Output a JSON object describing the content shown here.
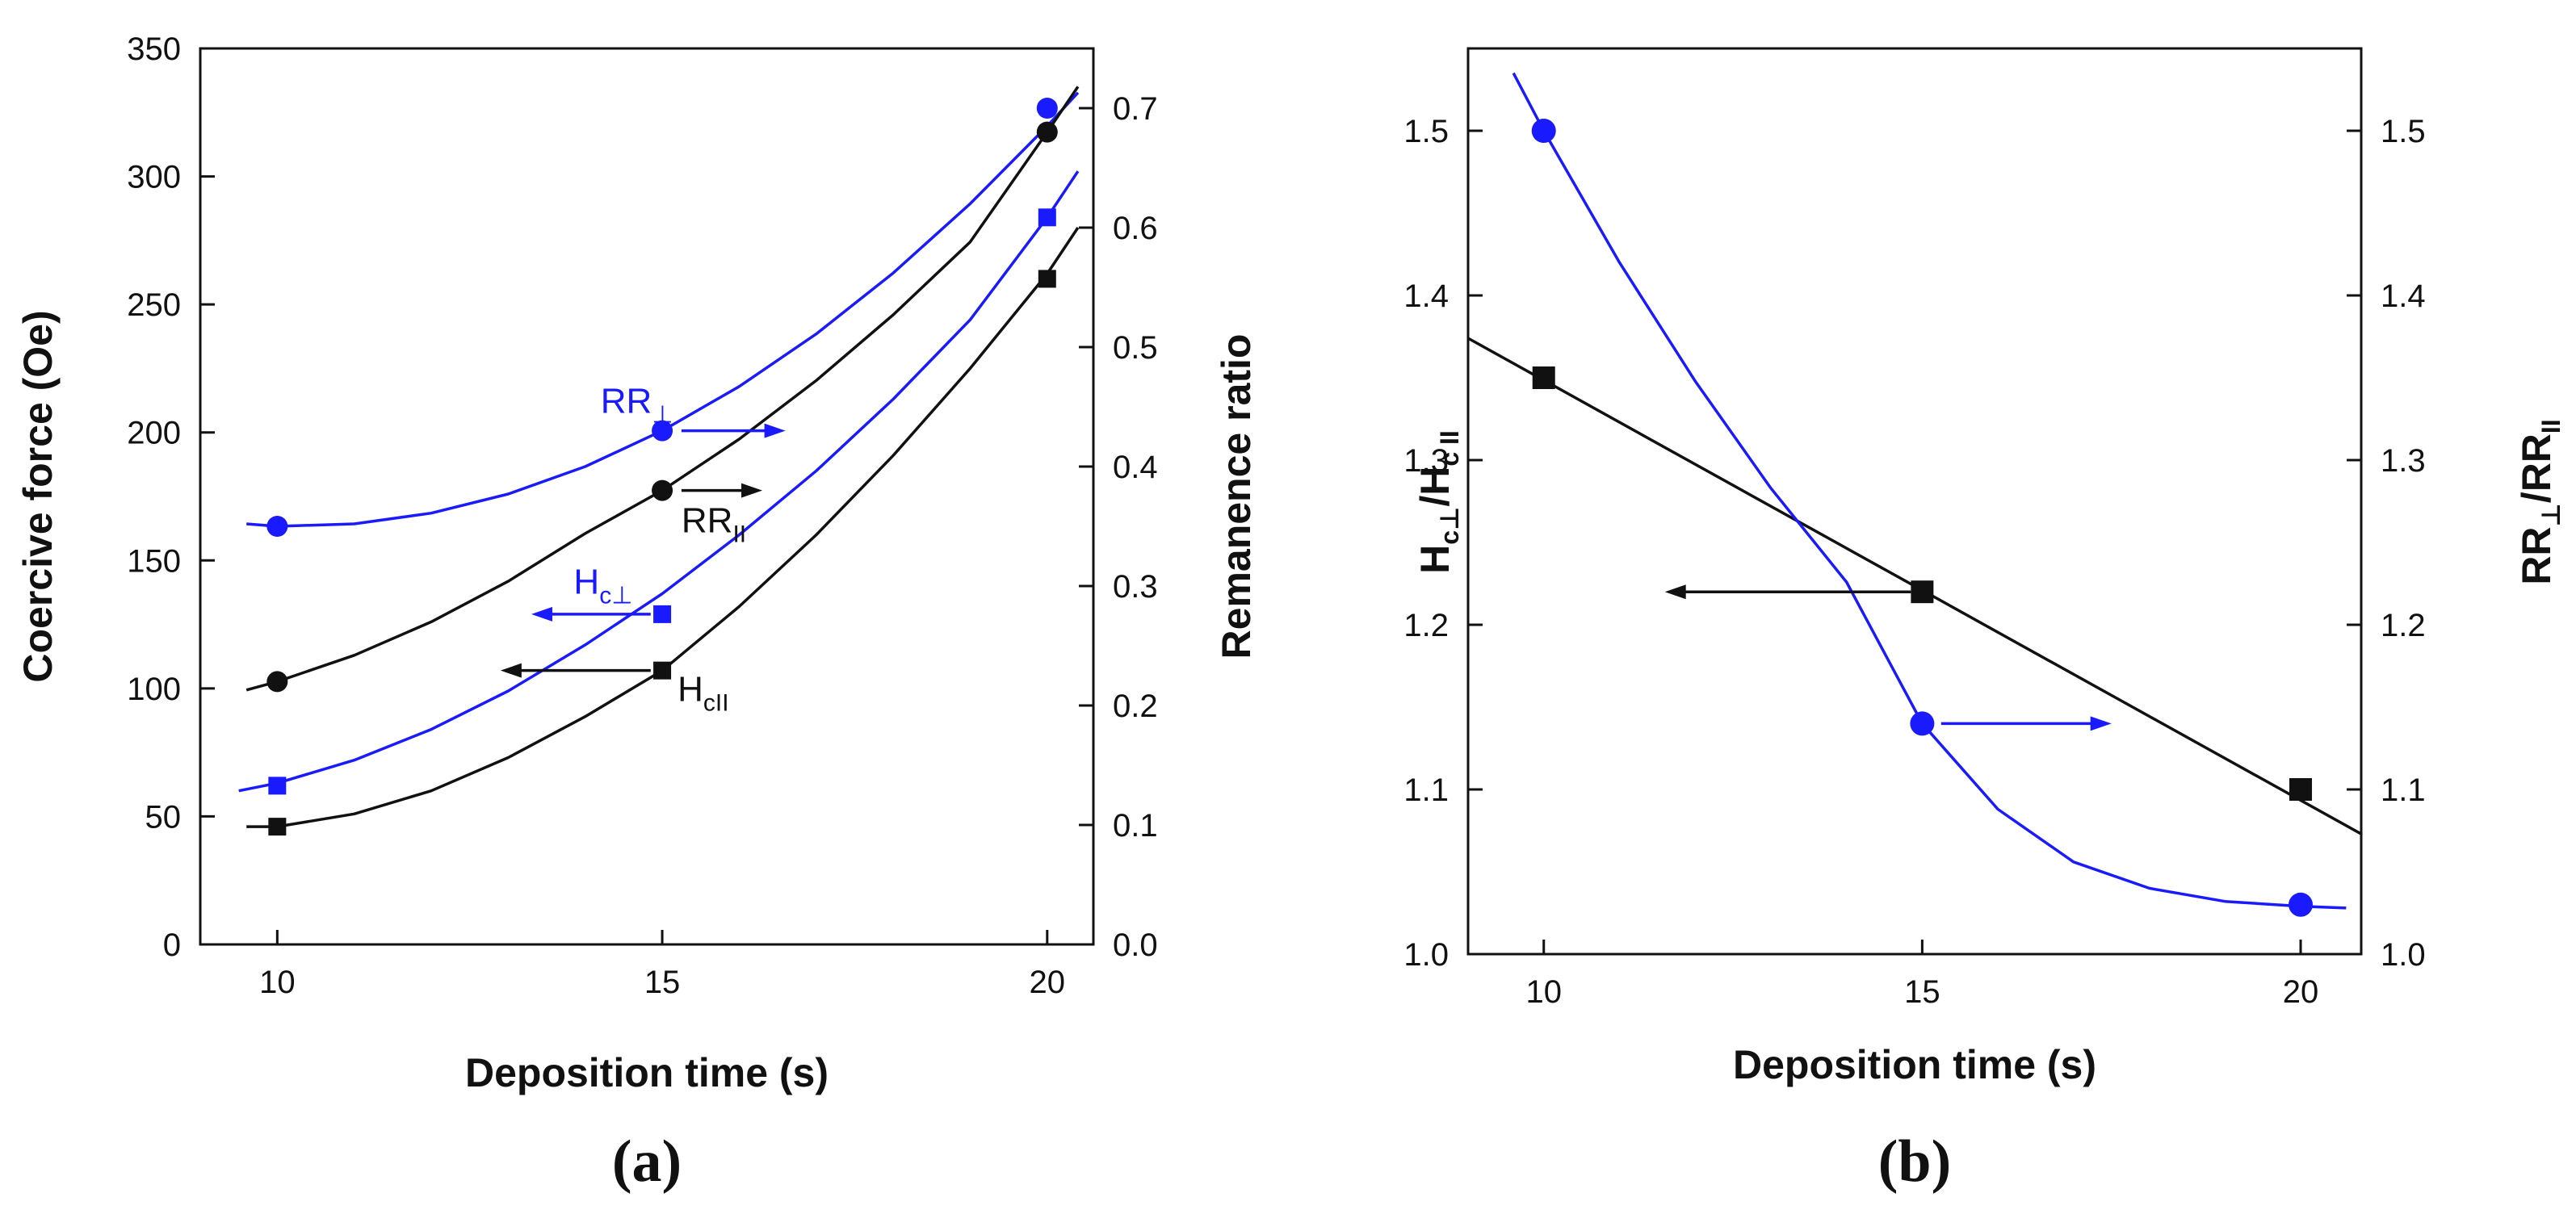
{
  "chart_data": [
    {
      "type": "line",
      "panel_label": "(a)",
      "xlabel": "Deposition time (s)",
      "ylabel": "Coercive force (Oe)",
      "y2label": "Remanence ratio",
      "xlim": [
        9,
        20.6
      ],
      "ylim": [
        0,
        350
      ],
      "y2lim": [
        0,
        0.75
      ],
      "x_ticks": [
        10,
        15,
        20
      ],
      "y_ticks": [
        0,
        50,
        100,
        150,
        200,
        250,
        300,
        350
      ],
      "y2_ticks": [
        0.0,
        0.1,
        0.2,
        0.3,
        0.4,
        0.5,
        0.6,
        0.7
      ],
      "x_tick_labels": [
        "10",
        "15",
        "20"
      ],
      "y_tick_labels": [
        "0",
        "50",
        "100",
        "150",
        "200",
        "250",
        "300",
        "350"
      ],
      "y2_tick_labels": [
        "0.0",
        "0.1",
        "0.2",
        "0.3",
        "0.4",
        "0.5",
        "0.6",
        "0.7"
      ],
      "series": [
        {
          "name": "RR⊥",
          "axis": "right",
          "color": "#1a1aff",
          "marker": "circle",
          "x": [
            10,
            15,
            20
          ],
          "values": [
            0.35,
            0.43,
            0.7
          ],
          "fit_x": [
            9.6,
            10,
            11,
            12,
            13,
            14,
            15,
            16,
            17,
            18,
            19,
            20,
            20.4
          ],
          "fit_y": [
            0.352,
            0.35,
            0.352,
            0.361,
            0.377,
            0.4,
            0.43,
            0.467,
            0.511,
            0.562,
            0.62,
            0.685,
            0.713
          ]
        },
        {
          "name": "RR||",
          "axis": "right",
          "color": "#111111",
          "marker": "circle",
          "x": [
            10,
            15,
            20
          ],
          "values": [
            0.22,
            0.38,
            0.68
          ],
          "fit_x": [
            9.6,
            10,
            11,
            12,
            13,
            14,
            15,
            16,
            17,
            18,
            19,
            20,
            20.4
          ],
          "fit_y": [
            0.213,
            0.22,
            0.242,
            0.27,
            0.304,
            0.344,
            0.38,
            0.423,
            0.472,
            0.527,
            0.588,
            0.68,
            0.718
          ]
        },
        {
          "name": "Hc⊥",
          "axis": "left",
          "color": "#1a1aff",
          "marker": "square",
          "x": [
            10,
            15,
            20
          ],
          "values": [
            62,
            129,
            284
          ],
          "fit_x": [
            9.5,
            10,
            11,
            12,
            13,
            14,
            15,
            16,
            17,
            18,
            19,
            20,
            20.4
          ],
          "fit_y": [
            60,
            63,
            72,
            84,
            99,
            117,
            137,
            160,
            185,
            213,
            244,
            284,
            302
          ]
        },
        {
          "name": "Hc||",
          "axis": "left",
          "color": "#111111",
          "marker": "square",
          "x": [
            10,
            15,
            20
          ],
          "values": [
            46,
            107,
            260
          ],
          "fit_x": [
            9.6,
            10,
            11,
            12,
            13,
            14,
            15,
            16,
            17,
            18,
            19,
            20,
            20.4
          ],
          "fit_y": [
            46,
            46,
            51,
            60,
            73,
            89,
            107,
            132,
            160,
            191,
            225,
            262,
            280
          ]
        }
      ],
      "annotations": [
        {
          "text": "RR",
          "sub": "⊥",
          "color": "#1a1aff",
          "x": 14.2,
          "y": 0.445,
          "axis": "right",
          "arrow": "right",
          "arrow_from": 15.25,
          "arrow_to": 16.6,
          "arrow_y": 0.43
        },
        {
          "text": "RR",
          "sub": "II",
          "color": "#111111",
          "x": 15.25,
          "y": 0.345,
          "axis": "right",
          "arrow": "right",
          "arrow_from": 15.25,
          "arrow_to": 16.3,
          "arrow_y": 0.38
        },
        {
          "text": "H",
          "sub": "c⊥",
          "color": "#1a1aff",
          "x": 13.85,
          "y": 137,
          "axis": "left",
          "arrow": "left",
          "arrow_from": 14.85,
          "arrow_to": 13.3,
          "arrow_y": 129
        },
        {
          "text": "H",
          "sub": "cII",
          "color": "#111111",
          "x": 15.2,
          "y": 95,
          "axis": "left",
          "arrow": "left",
          "arrow_from": 14.85,
          "arrow_to": 12.9,
          "arrow_y": 107
        }
      ]
    },
    {
      "type": "line",
      "panel_label": "(b)",
      "xlabel": "Deposition time (s)",
      "ylabel_main": "H",
      "ylabel_sub1": "c⊥",
      "ylabel_mid": "/H",
      "ylabel_sub2": "c II",
      "y2label_main": "RR",
      "y2label_sub1": "⊥",
      "y2label_mid": "/RR",
      "y2label_sub2": "II",
      "xlim": [
        9,
        20.8
      ],
      "ylim": [
        1.0,
        1.55
      ],
      "y2lim": [
        1.0,
        1.55
      ],
      "x_ticks": [
        10,
        15,
        20
      ],
      "y_ticks": [
        1.0,
        1.1,
        1.2,
        1.3,
        1.4,
        1.5
      ],
      "y2_ticks": [
        1.0,
        1.1,
        1.2,
        1.3,
        1.4,
        1.5
      ],
      "x_tick_labels": [
        "10",
        "15",
        "20"
      ],
      "y_tick_labels": [
        "1.0",
        "1.1",
        "1.2",
        "1.3",
        "1.4",
        "1.5"
      ],
      "y2_tick_labels": [
        "1.0",
        "1.1",
        "1.2",
        "1.3",
        "1.4",
        "1.5"
      ],
      "series": [
        {
          "name": "Hc⊥/Hc||",
          "axis": "left",
          "color": "#111111",
          "marker": "square",
          "x": [
            10,
            15,
            20
          ],
          "values": [
            1.35,
            1.22,
            1.1
          ],
          "fit_x": [
            9,
            20.8
          ],
          "fit_y": [
            1.374,
            1.073
          ]
        },
        {
          "name": "RR⊥/RR||",
          "axis": "right",
          "color": "#1a1aff",
          "marker": "circle",
          "x": [
            10,
            15,
            20
          ],
          "values": [
            1.5,
            1.14,
            1.03
          ],
          "fit_x": [
            9.6,
            10,
            11,
            12,
            13,
            14,
            15,
            16,
            17,
            18,
            19,
            20,
            20.6
          ],
          "fit_y": [
            1.535,
            1.5,
            1.42,
            1.348,
            1.283,
            1.226,
            1.14,
            1.088,
            1.056,
            1.04,
            1.032,
            1.029,
            1.028
          ]
        }
      ],
      "annotations": [
        {
          "color": "#111111",
          "arrow": "left",
          "arrow_from": 14.85,
          "arrow_to": 11.6,
          "arrow_y": 1.22,
          "axis": "left"
        },
        {
          "color": "#1a1aff",
          "arrow": "right",
          "arrow_from": 15.25,
          "arrow_to": 17.5,
          "arrow_y": 1.14,
          "axis": "right"
        }
      ]
    }
  ]
}
